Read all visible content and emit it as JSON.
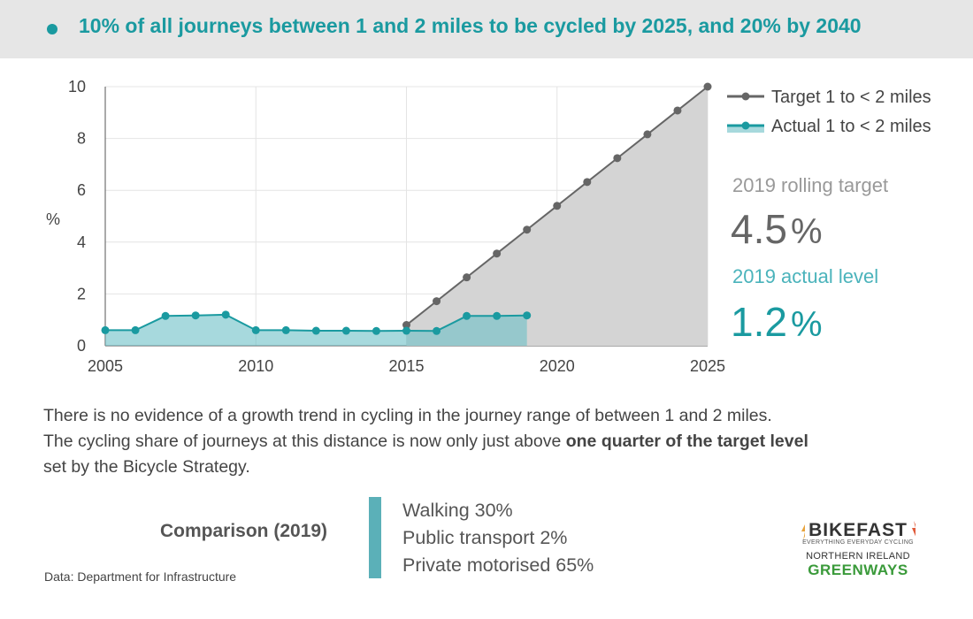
{
  "header": {
    "title": "10% of all journeys between 1 and 2 miles to be cycled by 2025, and 20% by 2040"
  },
  "chart_data": {
    "type": "line",
    "ylabel": "%",
    "xlabel": "",
    "xlim": [
      2005,
      2025
    ],
    "ylim": [
      0,
      10
    ],
    "x_ticks": [
      2005,
      2010,
      2015,
      2020,
      2025
    ],
    "y_ticks": [
      0,
      2,
      4,
      6,
      8,
      10
    ],
    "grid": true,
    "legend_position": "top-right",
    "series": [
      {
        "name": "Target 1 to < 2 miles",
        "color": "#666666",
        "area_color": "#d4d4d4",
        "x": [
          2015,
          2016,
          2017,
          2018,
          2019,
          2020,
          2021,
          2022,
          2023,
          2024,
          2025
        ],
        "values": [
          0.8,
          1.72,
          2.64,
          3.56,
          4.48,
          5.4,
          6.32,
          7.24,
          8.16,
          9.08,
          10.0
        ]
      },
      {
        "name": "Actual 1 to < 2 miles",
        "color": "#1a9aa0",
        "area_color": "#6cc0c6",
        "x": [
          2005,
          2006,
          2007,
          2008,
          2009,
          2010,
          2011,
          2012,
          2013,
          2014,
          2015,
          2016,
          2017,
          2018,
          2019
        ],
        "values": [
          0.6,
          0.6,
          1.15,
          1.17,
          1.2,
          0.6,
          0.6,
          0.58,
          0.58,
          0.57,
          0.58,
          0.57,
          1.15,
          1.15,
          1.17
        ]
      }
    ]
  },
  "stats": {
    "target_label": "2019 rolling target",
    "target_value": "4.5",
    "target_unit": "%",
    "actual_label": "2019 actual level",
    "actual_value": "1.2",
    "actual_unit": "%",
    "target_color": "#666666",
    "target_label_color": "#999999",
    "actual_color": "#1a9aa0",
    "actual_label_color": "#4ab3bb"
  },
  "body": {
    "line1": "There is no evidence of a growth trend in cycling in the journey range of between 1 and 2 miles.",
    "line2_pre": "The cycling share of journeys at this distance is now only just above ",
    "line2_bold": "one quarter of the target level",
    "line3": "set by the Bicycle Strategy."
  },
  "comparison": {
    "label": "Comparison (2019)",
    "items": [
      "Walking 30%",
      "Public transport 2%",
      "Private motorised 65%"
    ]
  },
  "source": "Data: Department for Infrastructure",
  "logo": {
    "bikefast": "BIKEFAST",
    "tagline": "EVERYTHING EVERYDAY CYCLING",
    "ni": "NORTHERN IRELAND",
    "greenways": "GREENWAYS"
  }
}
